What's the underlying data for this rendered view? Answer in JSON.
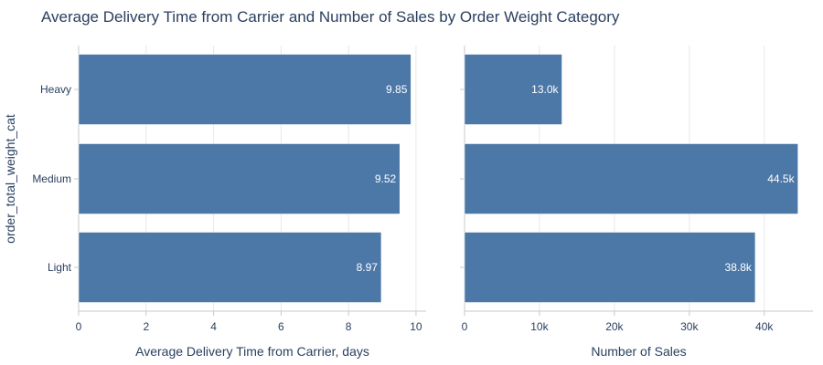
{
  "title": "Average Delivery Time from Carrier and Number of Sales by Order Weight Category",
  "chart_data": [
    {
      "type": "bar",
      "orientation": "horizontal",
      "categories": [
        "Heavy",
        "Medium",
        "Light"
      ],
      "values": [
        9.85,
        9.52,
        8.97
      ],
      "data_labels": [
        "9.85",
        "9.52",
        "8.97"
      ],
      "xlabel": "Average Delivery Time from Carrier, days",
      "ylabel": "order_total_weight_cat",
      "xlim": [
        0,
        10.3
      ],
      "xticks": [
        0,
        2,
        4,
        6,
        8,
        10
      ],
      "xtick_labels": [
        "0",
        "2",
        "4",
        "6",
        "8",
        "10"
      ],
      "bar_color": "#4c78a8",
      "grid": true
    },
    {
      "type": "bar",
      "orientation": "horizontal",
      "categories": [
        "Heavy",
        "Medium",
        "Light"
      ],
      "values": [
        13000,
        44500,
        38800
      ],
      "data_labels": [
        "13.0k",
        "44.5k",
        "38.8k"
      ],
      "xlabel": "Number of Sales",
      "xlim": [
        0,
        46500
      ],
      "xticks": [
        0,
        10000,
        20000,
        30000,
        40000
      ],
      "xtick_labels": [
        "0",
        "10k",
        "20k",
        "30k",
        "40k"
      ],
      "bar_color": "#4c78a8",
      "grid": true
    }
  ]
}
